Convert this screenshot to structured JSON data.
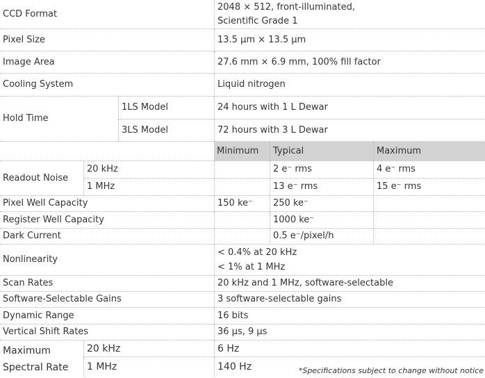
{
  "rows": {
    "ccd_format": {
      "label": "CCD Format",
      "value": [
        "2048 × 512, front-illuminated,",
        "Scientific Grade 1"
      ]
    },
    "pixel_size": {
      "label": "Pixel Size",
      "value": "13.5 µm × 13.5 µm"
    },
    "image_area": {
      "label": "Image Area",
      "value": "27.6 mm × 6.9 mm, 100% fill factor"
    },
    "cooling": {
      "label": "Cooling System",
      "value": "Liquid nitrogen"
    },
    "hold_time": {
      "label": "Hold Time",
      "sub": [
        {
          "label": "1LS Model",
          "value": "24 hours with 1 L Dewar"
        },
        {
          "label": "3LS Model",
          "value": "72 hours with 3 L Dewar"
        }
      ]
    },
    "header": {
      "minimum": "Minimum",
      "typical": "Typical",
      "maximum": "Maximum"
    },
    "readout_noise": {
      "label": "Readout Noise",
      "sub": [
        {
          "label": "20 kHz",
          "minimum": "",
          "typical": "2 e⁻ rms",
          "maximum": "4 e⁻ rms"
        },
        {
          "label": "1 MHz",
          "minimum": "",
          "typical": "13 e⁻ rms",
          "maximum": "15 e⁻ rms"
        }
      ]
    },
    "pixel_well": {
      "label": "Pixel Well Capacity",
      "minimum": "150 ke⁻",
      "typical": "250 ke⁻"
    },
    "register_well": {
      "label": "Register Well Capacity",
      "typical": "1000 ke⁻"
    },
    "dark_current": {
      "label": "Dark Current",
      "typical": "0.5 e⁻/pixel/h"
    },
    "nonlinearity": {
      "label": "Nonlinearity",
      "value": [
        "< 0.4% at  20 kHz",
        "< 1% at 1 MHz"
      ]
    },
    "scan_rates": {
      "label": "Scan Rates",
      "value": "20 kHz and 1 MHz,  software-selectable"
    },
    "gains": {
      "label": "Software-Selectable Gains",
      "value": "3 software-selectable gains"
    },
    "dynamic_range": {
      "label": "Dynamic Range",
      "value": "16 bits"
    },
    "vertical_shift": {
      "label": "Vertical Shift Rates",
      "value": "36 µs, 9 µs"
    },
    "max_spectral_rate": {
      "label": [
        "Maximum",
        "Spectral Rate"
      ],
      "sub": [
        {
          "label": "20 kHz",
          "value": "6 Hz"
        },
        {
          "label": "1 MHz",
          "value": "140 Hz"
        }
      ]
    }
  },
  "footnote": "*Specifications subject to change without notice"
}
